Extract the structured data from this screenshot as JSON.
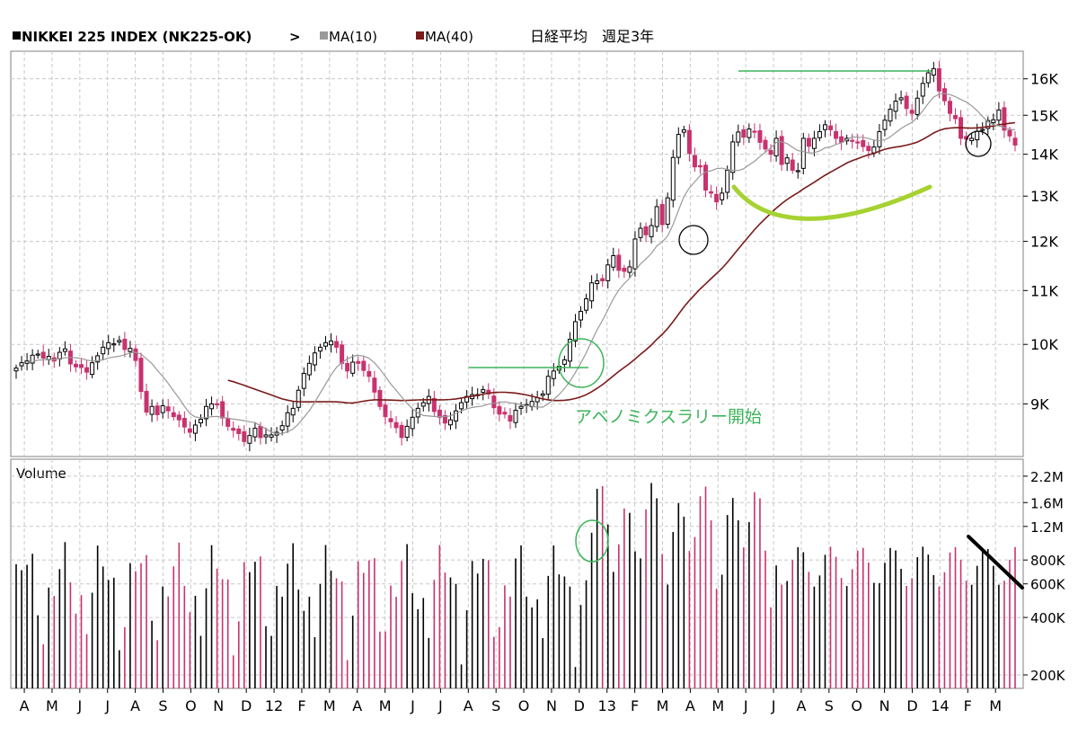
{
  "header": {
    "symbol": "NIKKEI 225 INDEX (NK225-OK)",
    "arrow": ">",
    "ma10_label": "MA(10)",
    "ma40_label": "MA(40)",
    "title_jp": "日経平均　週足3年",
    "ma10_color": "#999999",
    "ma40_color": "#7a1a1a"
  },
  "colors": {
    "up": "#000000",
    "down": "#c8326e",
    "grid": "#c8c8c8",
    "annotation_green": "#3cb45a",
    "annotation_lime": "#a6d232"
  },
  "chart_data": [
    {
      "type": "candlestick",
      "title": "",
      "y_scale": "log",
      "ylim": [
        8200,
        16800
      ],
      "y_ticks": [
        9000,
        10000,
        11000,
        12000,
        13000,
        14000,
        15000,
        16000
      ],
      "y_tick_labels": [
        "9K",
        "10K",
        "11K",
        "12K",
        "13K",
        "14K",
        "15K",
        "16K"
      ],
      "grid": true,
      "series": [
        {
          "name": "MA(10)",
          "color": "#999999"
        },
        {
          "name": "MA(40)",
          "color": "#7a1a1a"
        }
      ],
      "weekly_close": [
        9590,
        9680,
        9710,
        9810,
        9830,
        9760,
        9790,
        9710,
        9860,
        9920,
        9660,
        9610,
        9600,
        9520,
        9680,
        9800,
        9950,
        10030,
        10010,
        10070,
        9910,
        9930,
        9720,
        9200,
        8870,
        8960,
        8830,
        8970,
        8890,
        8800,
        8750,
        8640,
        8560,
        8670,
        8760,
        8960,
        9000,
        9000,
        8780,
        8650,
        8590,
        8540,
        8420,
        8510,
        8620,
        8480,
        8520,
        8520,
        8560,
        8660,
        8860,
        8930,
        9220,
        9500,
        9670,
        9850,
        9950,
        10030,
        10060,
        9950,
        9670,
        9540,
        9690,
        9670,
        9550,
        9450,
        9190,
        8960,
        8800,
        8720,
        8630,
        8480,
        8650,
        8790,
        8930,
        9020,
        9120,
        8880,
        8790,
        8700,
        8750,
        8890,
        9020,
        9120,
        9150,
        9150,
        9230,
        9160,
        8940,
        8840,
        8840,
        8730,
        8900,
        8960,
        8990,
        9040,
        9100,
        9160,
        9450,
        9540,
        9620,
        9730,
        10090,
        10410,
        10600,
        10840,
        11150,
        11190,
        11190,
        11510,
        11700,
        11400,
        11380,
        11470,
        12050,
        12280,
        12140,
        12340,
        12760,
        12360,
        12960,
        13920,
        14500,
        14620,
        14020,
        13690,
        13690,
        13140,
        13070,
        12870,
        13070,
        13610,
        14310,
        14560,
        14430,
        14640,
        14570,
        14300,
        14130,
        14000,
        14400,
        13750,
        13910,
        13610,
        13600,
        14400,
        14200,
        14400,
        14570,
        14750,
        14620,
        14400,
        14300,
        14400,
        14330,
        14290,
        14190,
        14090,
        14180,
        14570,
        14870,
        15160,
        15380,
        15470,
        15180,
        15050,
        15460,
        15870,
        16170,
        16290,
        15660,
        15390,
        15050,
        14910,
        14400,
        14380,
        14400,
        14580,
        14630,
        14860,
        14880,
        15140,
        14610,
        14460,
        14230
      ],
      "ma10_start_week": 3,
      "ma40_start_week": 39
    },
    {
      "type": "bar",
      "title": "Volume",
      "y_scale": "log",
      "ylim": [
        170000000,
        2700000000
      ],
      "y_ticks": [
        200000000,
        400000000,
        600000000,
        800000000,
        1200000000,
        1600000000,
        2200000000
      ],
      "y_tick_labels": [
        "200K",
        "400K",
        "600K",
        "800K",
        "1.2M",
        "1.6M",
        "2.2M"
      ],
      "x_tick_labels": [
        "A",
        "M",
        "J",
        "J",
        "A",
        "S",
        "O",
        "N",
        "D",
        "12",
        "F",
        "M",
        "A",
        "M",
        "J",
        "J",
        "A",
        "S",
        "O",
        "N",
        "D",
        "13",
        "F",
        "M",
        "A",
        "M",
        "J",
        "J",
        "A",
        "S",
        "O",
        "N",
        "D",
        "14",
        "F",
        "M"
      ],
      "volume_min": 170000000
    }
  ],
  "annotations": {
    "rally_label": "アベノミクスラリー開始"
  }
}
